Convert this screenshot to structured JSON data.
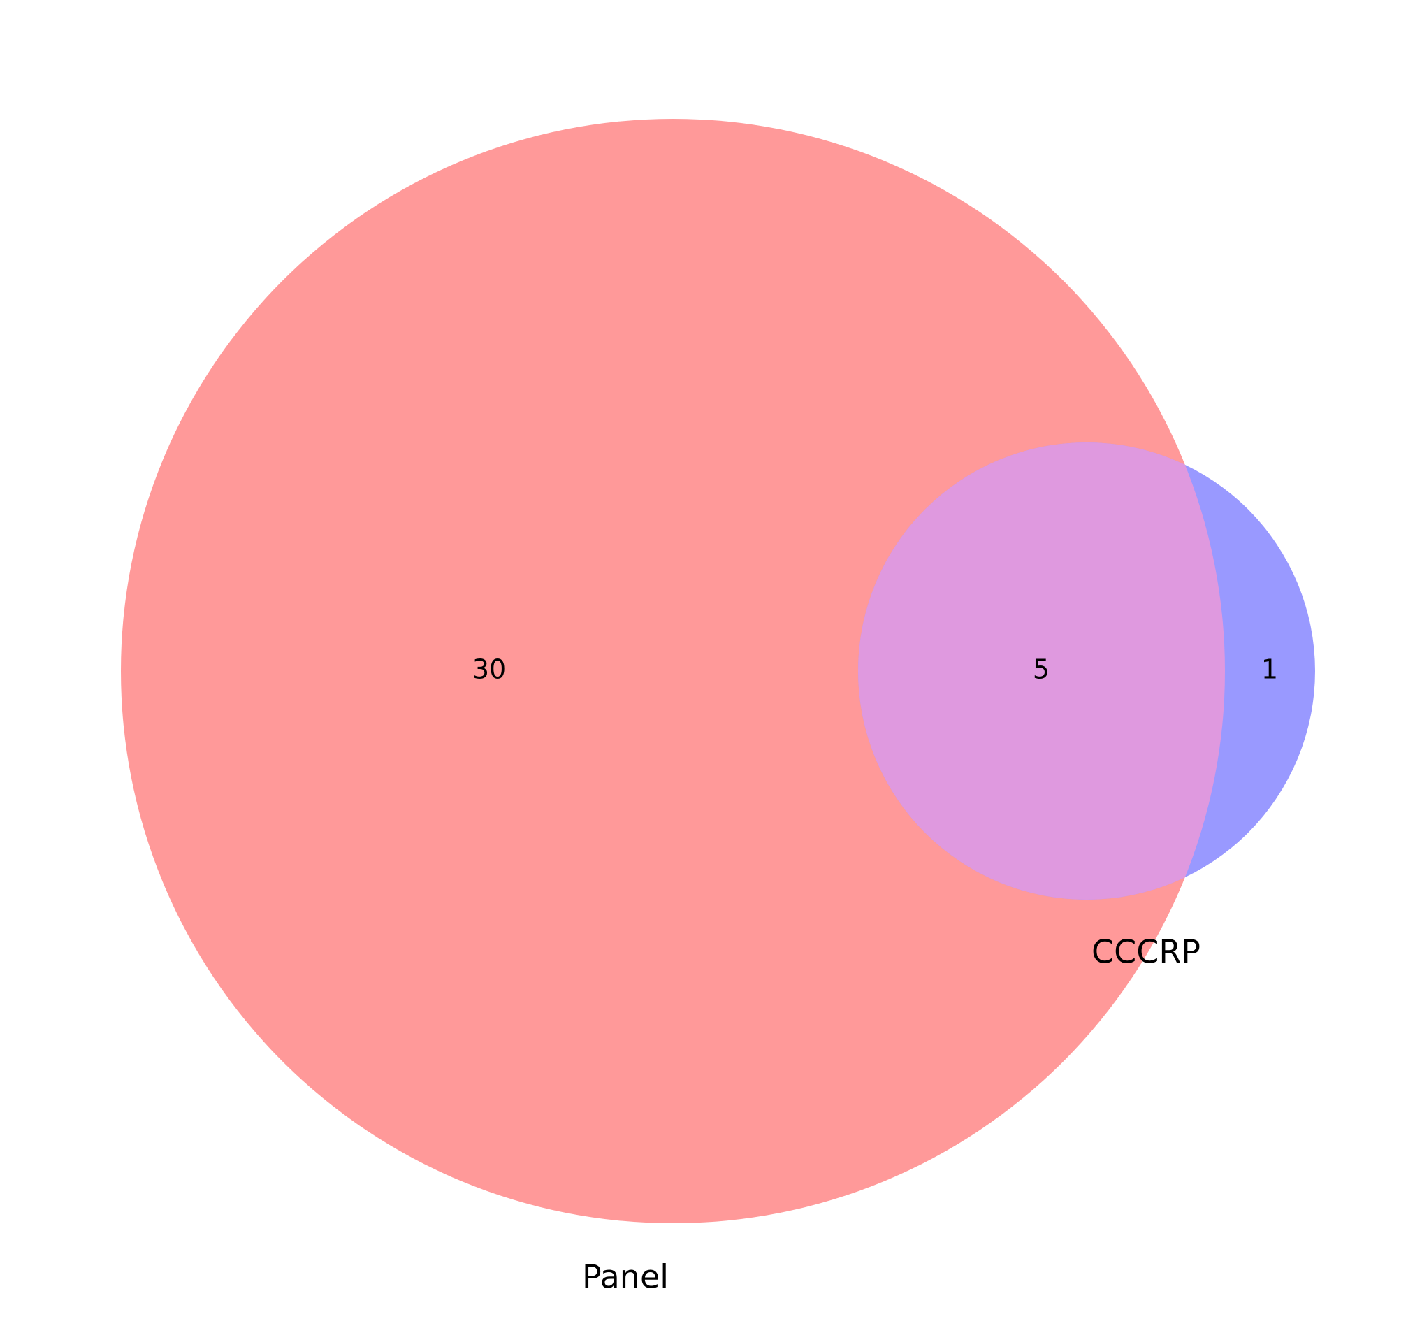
{
  "chart_data": {
    "type": "venn",
    "sets": [
      {
        "name": "Panel",
        "color": "#ff9999"
      },
      {
        "name": "CCCRP",
        "color": "#9999ff"
      }
    ],
    "regions": {
      "panel_only": 30,
      "both": 5,
      "cccrp_only": 1
    },
    "overlap_color": "#df99df"
  }
}
